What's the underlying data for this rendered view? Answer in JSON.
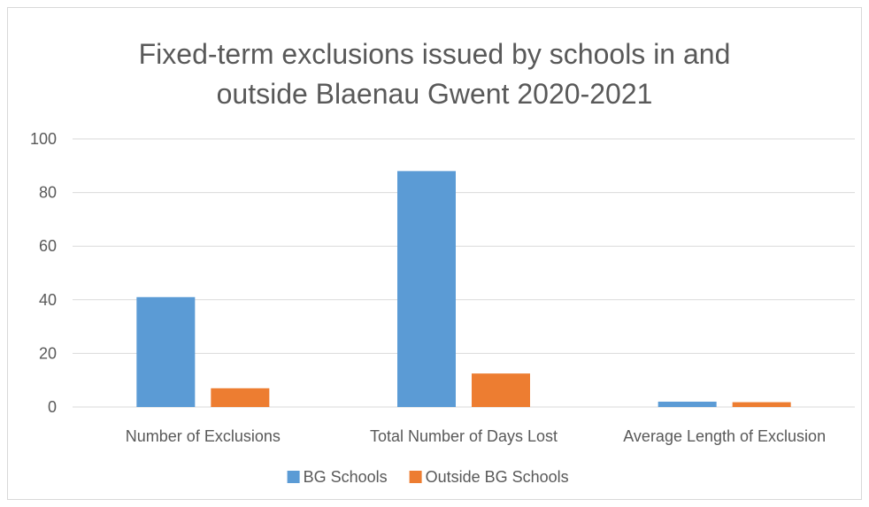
{
  "chart_data": {
    "type": "bar",
    "title_lines": [
      "Fixed-term exclusions issued by schools in and",
      "outside Blaenau Gwent 2020-2021"
    ],
    "categories": [
      "Number of Exclusions",
      "Total Number of Days Lost",
      "Average Length of Exclusion"
    ],
    "series": [
      {
        "name": "BG Schools",
        "values": [
          41,
          88,
          2
        ],
        "color": "#5b9bd5"
      },
      {
        "name": "Outside BG Schools",
        "values": [
          7,
          12.5,
          1.8
        ],
        "color": "#ed7d31"
      }
    ],
    "ylim": [
      0,
      100
    ],
    "yticks": [
      "0",
      "20",
      "40",
      "60",
      "80",
      "100"
    ],
    "grid": true,
    "legend_position": "bottom"
  }
}
